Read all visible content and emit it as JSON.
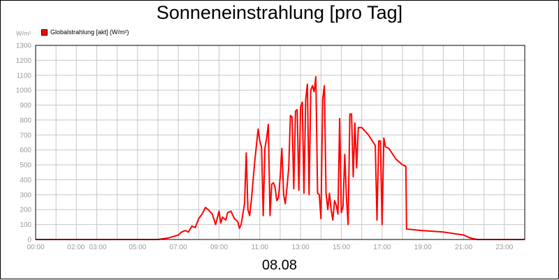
{
  "chart_data": {
    "type": "line",
    "title": "Sonneneinstrahlung [pro Tag]",
    "ylabel": "W/m²",
    "xlabel": "08.08",
    "ylim": [
      0,
      1300
    ],
    "y_ticks": [
      "0",
      "100",
      "200",
      "300",
      "400",
      "500",
      "600",
      "700",
      "800",
      "900",
      "1000",
      "1100",
      "1200",
      "1300"
    ],
    "x_ticks": [
      {
        "h": 0,
        "label": "00:00"
      },
      {
        "h": 2,
        "label": "02:00"
      },
      {
        "h": 3,
        "label": "03:00"
      },
      {
        "h": 5,
        "label": "05:00"
      },
      {
        "h": 7,
        "label": "07:00"
      },
      {
        "h": 9,
        "label": "09:00"
      },
      {
        "h": 11,
        "label": "11:00"
      },
      {
        "h": 13,
        "label": "13:00"
      },
      {
        "h": 15,
        "label": "15:00"
      },
      {
        "h": 17,
        "label": "17:00"
      },
      {
        "h": 19,
        "label": "19:00"
      },
      {
        "h": 21,
        "label": "21:00"
      },
      {
        "h": 23,
        "label": "23:00"
      }
    ],
    "grid": true,
    "legend_position": "top-left",
    "series": [
      {
        "name": "Globalstrahlung [akt] (W/m²)",
        "color": "#ff0000",
        "points": [
          [
            "00:00",
            0
          ],
          [
            "06:00",
            0
          ],
          [
            "06:30",
            10
          ],
          [
            "06:45",
            20
          ],
          [
            "07:00",
            30
          ],
          [
            "07:10",
            50
          ],
          [
            "07:20",
            60
          ],
          [
            "07:30",
            50
          ],
          [
            "07:40",
            90
          ],
          [
            "07:50",
            80
          ],
          [
            "08:00",
            140
          ],
          [
            "08:10",
            170
          ],
          [
            "08:20",
            215
          ],
          [
            "08:30",
            195
          ],
          [
            "08:40",
            170
          ],
          [
            "08:50",
            100
          ],
          [
            "09:00",
            190
          ],
          [
            "09:05",
            110
          ],
          [
            "09:10",
            150
          ],
          [
            "09:20",
            130
          ],
          [
            "09:25",
            180
          ],
          [
            "09:35",
            190
          ],
          [
            "09:45",
            140
          ],
          [
            "09:55",
            120
          ],
          [
            "10:00",
            75
          ],
          [
            "10:05",
            100
          ],
          [
            "10:15",
            240
          ],
          [
            "10:20",
            580
          ],
          [
            "10:25",
            200
          ],
          [
            "10:30",
            160
          ],
          [
            "10:35",
            260
          ],
          [
            "10:45",
            520
          ],
          [
            "10:55",
            740
          ],
          [
            "11:00",
            660
          ],
          [
            "11:05",
            620
          ],
          [
            "11:10",
            160
          ],
          [
            "11:15",
            610
          ],
          [
            "11:20",
            680
          ],
          [
            "11:25",
            770
          ],
          [
            "11:30",
            160
          ],
          [
            "11:35",
            370
          ],
          [
            "11:40",
            380
          ],
          [
            "11:45",
            350
          ],
          [
            "11:50",
            260
          ],
          [
            "11:55",
            280
          ],
          [
            "12:00",
            420
          ],
          [
            "12:05",
            610
          ],
          [
            "12:10",
            300
          ],
          [
            "12:15",
            240
          ],
          [
            "12:20",
            350
          ],
          [
            "12:25",
            480
          ],
          [
            "12:30",
            830
          ],
          [
            "12:35",
            820
          ],
          [
            "12:40",
            340
          ],
          [
            "12:45",
            860
          ],
          [
            "12:50",
            870
          ],
          [
            "12:55",
            330
          ],
          [
            "13:00",
            890
          ],
          [
            "13:05",
            920
          ],
          [
            "13:10",
            310
          ],
          [
            "13:15",
            940
          ],
          [
            "13:20",
            1040
          ],
          [
            "13:25",
            300
          ],
          [
            "13:30",
            1000
          ],
          [
            "13:35",
            1030
          ],
          [
            "13:40",
            990
          ],
          [
            "13:45",
            1090
          ],
          [
            "13:50",
            310
          ],
          [
            "13:55",
            300
          ],
          [
            "14:00",
            140
          ],
          [
            "14:05",
            940
          ],
          [
            "14:10",
            1030
          ],
          [
            "14:15",
            310
          ],
          [
            "14:20",
            200
          ],
          [
            "14:25",
            310
          ],
          [
            "14:30",
            200
          ],
          [
            "14:35",
            130
          ],
          [
            "14:40",
            260
          ],
          [
            "14:45",
            230
          ],
          [
            "14:50",
            170
          ],
          [
            "14:55",
            810
          ],
          [
            "15:00",
            180
          ],
          [
            "15:05",
            220
          ],
          [
            "15:10",
            570
          ],
          [
            "15:15",
            280
          ],
          [
            "15:20",
            100
          ],
          [
            "15:25",
            840
          ],
          [
            "15:30",
            840
          ],
          [
            "15:35",
            420
          ],
          [
            "15:40",
            780
          ],
          [
            "15:45",
            480
          ],
          [
            "15:50",
            750
          ],
          [
            "16:00",
            750
          ],
          [
            "16:20",
            700
          ],
          [
            "16:40",
            630
          ],
          [
            "16:45",
            130
          ],
          [
            "16:50",
            660
          ],
          [
            "16:55",
            660
          ],
          [
            "17:00",
            100
          ],
          [
            "17:05",
            680
          ],
          [
            "17:10",
            620
          ],
          [
            "17:20",
            610
          ],
          [
            "17:40",
            540
          ],
          [
            "18:00",
            500
          ],
          [
            "18:10",
            490
          ],
          [
            "18:12",
            70
          ],
          [
            "19:00",
            60
          ],
          [
            "20:00",
            50
          ],
          [
            "21:00",
            30
          ],
          [
            "21:20",
            10
          ],
          [
            "21:40",
            0
          ],
          [
            "23:59",
            0
          ]
        ]
      }
    ]
  }
}
